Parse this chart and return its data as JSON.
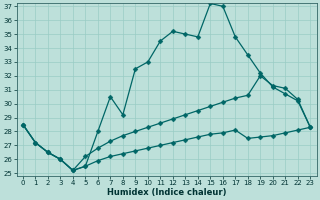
{
  "xlabel": "Humidex (Indice chaleur)",
  "bg_color": "#bde0da",
  "grid_color": "#9accc5",
  "line_color": "#006666",
  "ylim": [
    25,
    37
  ],
  "xlim": [
    -0.5,
    23.5
  ],
  "yticks": [
    25,
    26,
    27,
    28,
    29,
    30,
    31,
    32,
    33,
    34,
    35,
    36,
    37
  ],
  "xticks": [
    0,
    1,
    2,
    3,
    4,
    5,
    6,
    7,
    8,
    9,
    10,
    11,
    12,
    13,
    14,
    15,
    16,
    17,
    18,
    19,
    20,
    21,
    22,
    23
  ],
  "line1_x": [
    0,
    1,
    2,
    3,
    4,
    5,
    6,
    7,
    8,
    9,
    10,
    11,
    12,
    13,
    14,
    15,
    16,
    17,
    18,
    19,
    20,
    21,
    22,
    23
  ],
  "line1_y": [
    28.5,
    27.2,
    26.5,
    26.0,
    25.2,
    25.5,
    28.0,
    30.5,
    29.2,
    32.5,
    33.0,
    34.5,
    35.2,
    35.0,
    34.8,
    37.2,
    37.0,
    34.8,
    33.5,
    32.2,
    31.2,
    30.7,
    30.2,
    28.3
  ],
  "line2_x": [
    0,
    1,
    2,
    3,
    4,
    5,
    6,
    7,
    8,
    9,
    10,
    11,
    12,
    13,
    14,
    15,
    16,
    17,
    18,
    19,
    20,
    21,
    22,
    23
  ],
  "line2_y": [
    28.5,
    27.2,
    26.5,
    26.0,
    25.2,
    26.2,
    26.8,
    27.3,
    27.7,
    28.0,
    28.3,
    28.6,
    28.9,
    29.2,
    29.5,
    29.8,
    30.1,
    30.4,
    30.6,
    32.0,
    31.3,
    31.1,
    30.3,
    28.3
  ],
  "line3_x": [
    0,
    1,
    2,
    3,
    4,
    5,
    6,
    7,
    8,
    9,
    10,
    11,
    12,
    13,
    14,
    15,
    16,
    17,
    18,
    19,
    20,
    21,
    22,
    23
  ],
  "line3_y": [
    28.5,
    27.2,
    26.5,
    26.0,
    25.2,
    25.5,
    25.9,
    26.2,
    26.4,
    26.6,
    26.8,
    27.0,
    27.2,
    27.4,
    27.6,
    27.8,
    27.9,
    28.1,
    27.5,
    27.6,
    27.7,
    27.9,
    28.1,
    28.3
  ],
  "marker_size": 2.5,
  "line_width": 0.9,
  "tick_fontsize": 5.0,
  "xlabel_fontsize": 6.0
}
